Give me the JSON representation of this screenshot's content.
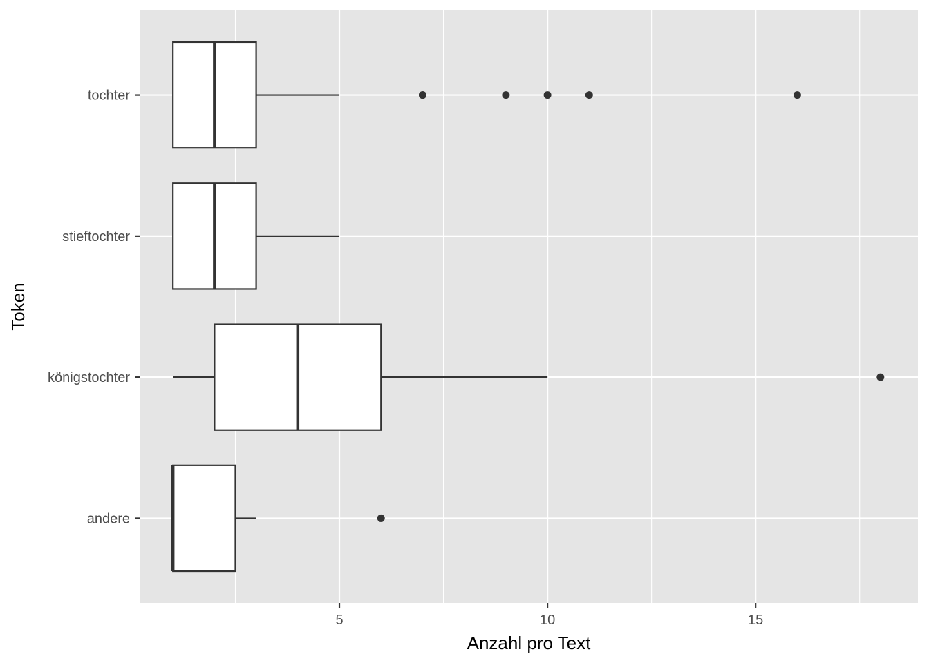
{
  "chart_data": {
    "type": "boxplot",
    "orientation": "horizontal",
    "title": "",
    "xlabel": "Anzahl pro Text",
    "ylabel": "Token",
    "xlim": [
      0.2,
      18.9
    ],
    "x_ticks": [
      5,
      10,
      15
    ],
    "x_tick_labels": [
      "5",
      "10",
      "15"
    ],
    "grid": true,
    "legend": "none",
    "categories": [
      "andere",
      "königstochter",
      "stieftochter",
      "tochter"
    ],
    "boxes": [
      {
        "category": "andere",
        "whisker_low": 1,
        "q1": 1,
        "median": 1,
        "q3": 2.5,
        "whisker_high": 3,
        "outliers": [
          6
        ]
      },
      {
        "category": "königstochter",
        "whisker_low": 1,
        "q1": 2,
        "median": 4,
        "q3": 6,
        "whisker_high": 10,
        "outliers": [
          18
        ]
      },
      {
        "category": "stieftochter",
        "whisker_low": 1,
        "q1": 1,
        "median": 2,
        "q3": 3,
        "whisker_high": 5,
        "outliers": []
      },
      {
        "category": "tochter",
        "whisker_low": 1,
        "q1": 1,
        "median": 2,
        "q3": 3,
        "whisker_high": 5,
        "outliers": [
          7,
          7,
          9,
          10,
          11,
          16
        ]
      }
    ],
    "colors": {
      "panel": "#e5e5e5",
      "grid": "#ffffff",
      "box_fill": "#ffffff",
      "box_line": "#333333",
      "tick": "#333333",
      "tick_label": "#4d4d4d"
    }
  }
}
